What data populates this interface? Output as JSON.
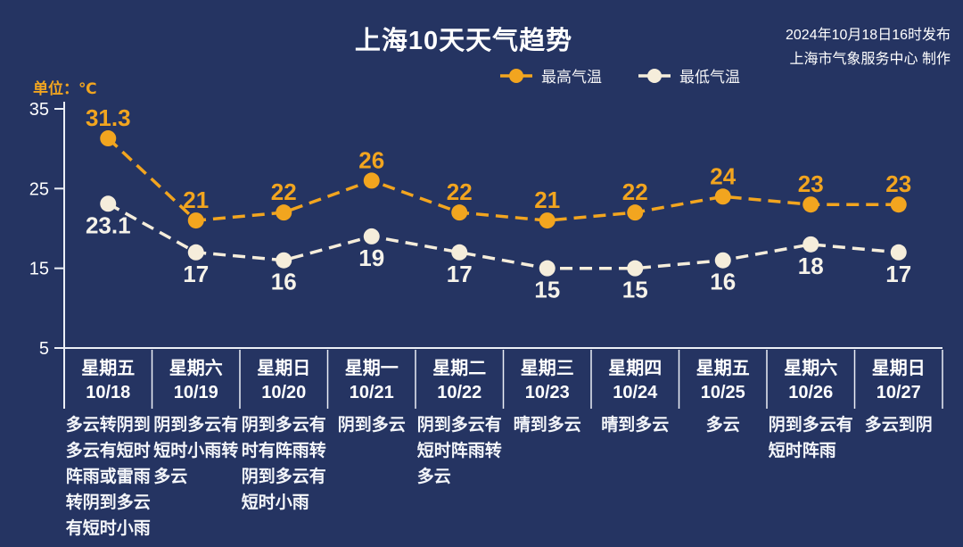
{
  "header": {
    "title": "上海10天天气趋势",
    "publish_line1": "2024年10月18日16时发布",
    "publish_line2": "上海市气象服务中心 制作",
    "unit_label": "单位：℃"
  },
  "colors": {
    "background": "#253462",
    "axis": "#ECEFF6",
    "max_series": "#F2A51F",
    "min_series": "#F5EDDB",
    "min_label": "#F6F3EA",
    "text": "#FFFFFF"
  },
  "chart_data": {
    "type": "line",
    "title": "上海10天天气趋势",
    "unit": "℃",
    "ylim": [
      5,
      35
    ],
    "yticks": [
      35,
      25,
      15,
      5
    ],
    "grid": false,
    "legend_position": "top-center",
    "line_style": "dashed",
    "categories": [
      {
        "weekday": "星期五",
        "date": "10/18",
        "weather": "多云转阴到多云有短时阵雨或雷雨转阴到多云有短时小雨"
      },
      {
        "weekday": "星期六",
        "date": "10/19",
        "weather": "阴到多云有短时小雨转多云"
      },
      {
        "weekday": "星期日",
        "date": "10/20",
        "weather": "阴到多云有时有阵雨转阴到多云有短时小雨"
      },
      {
        "weekday": "星期一",
        "date": "10/21",
        "weather": "阴到多云"
      },
      {
        "weekday": "星期二",
        "date": "10/22",
        "weather": "阴到多云有短时阵雨转多云"
      },
      {
        "weekday": "星期三",
        "date": "10/23",
        "weather": "晴到多云"
      },
      {
        "weekday": "星期四",
        "date": "10/24",
        "weather": "晴到多云"
      },
      {
        "weekday": "星期五",
        "date": "10/25",
        "weather": "多云"
      },
      {
        "weekday": "星期六",
        "date": "10/26",
        "weather": "阴到多云有短时阵雨"
      },
      {
        "weekday": "星期日",
        "date": "10/27",
        "weather": "多云到阴"
      }
    ],
    "series": [
      {
        "name": "最高气温",
        "values": [
          31.3,
          21,
          22,
          26,
          22,
          21,
          22,
          24,
          23,
          23
        ],
        "color": "#F2A51F",
        "label_color": "#F2A51F",
        "label_position": "above"
      },
      {
        "name": "最低气温",
        "values": [
          23.1,
          17,
          16,
          19,
          17,
          15,
          15,
          16,
          18,
          17
        ],
        "color": "#F5EDDB",
        "label_color": "#F6F3EA",
        "label_position": "below"
      }
    ]
  }
}
